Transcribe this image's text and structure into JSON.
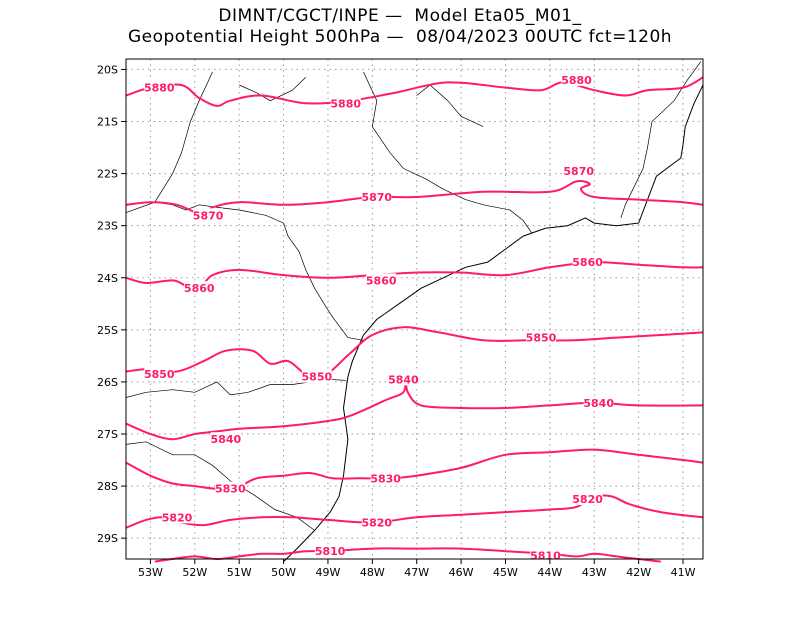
{
  "title_line1": "DIMNT/CGCT/INPE —  Model Eta05_M01_",
  "title_line2": "Geopotential Height 500hPa —  08/04/2023 00UTC fct=120h",
  "colors": {
    "contour": "#ff1a6e",
    "coast": "#000000",
    "grid": "#9a9a9a",
    "frame": "#000000"
  },
  "map": {
    "lon_range": [
      -53.55,
      -40.55
    ],
    "lat_range": [
      -29.4,
      -19.8
    ],
    "x_ticks": [
      {
        "lon": -53,
        "label": "53W"
      },
      {
        "lon": -52,
        "label": "52W"
      },
      {
        "lon": -51,
        "label": "51W"
      },
      {
        "lon": -50,
        "label": "50W"
      },
      {
        "lon": -49,
        "label": "49W"
      },
      {
        "lon": -48,
        "label": "48W"
      },
      {
        "lon": -47,
        "label": "47W"
      },
      {
        "lon": -46,
        "label": "46W"
      },
      {
        "lon": -45,
        "label": "45W"
      },
      {
        "lon": -44,
        "label": "44W"
      },
      {
        "lon": -43,
        "label": "43W"
      },
      {
        "lon": -42,
        "label": "42W"
      },
      {
        "lon": -41,
        "label": "41W"
      }
    ],
    "y_ticks": [
      {
        "lat": -20,
        "label": "20S"
      },
      {
        "lat": -21,
        "label": "21S"
      },
      {
        "lat": -22,
        "label": "22S"
      },
      {
        "lat": -23,
        "label": "23S"
      },
      {
        "lat": -24,
        "label": "24S"
      },
      {
        "lat": -25,
        "label": "25S"
      },
      {
        "lat": -26,
        "label": "26S"
      },
      {
        "lat": -27,
        "label": "27S"
      },
      {
        "lat": -28,
        "label": "28S"
      },
      {
        "lat": -29,
        "label": "29S"
      }
    ],
    "grid": "dotted"
  },
  "contours": [
    {
      "value": "5880",
      "points": [
        [
          -53.55,
          -20.5
        ],
        [
          -53.0,
          -20.35
        ],
        [
          -52.3,
          -20.3
        ],
        [
          -51.9,
          -20.55
        ],
        [
          -51.5,
          -20.7
        ],
        [
          -51.2,
          -20.6
        ],
        [
          -50.5,
          -20.5
        ],
        [
          -49.5,
          -20.65
        ],
        [
          -48.5,
          -20.6
        ],
        [
          -47.5,
          -20.45
        ],
        [
          -46.3,
          -20.25
        ],
        [
          -45.0,
          -20.35
        ],
        [
          -44.2,
          -20.4
        ],
        [
          -43.7,
          -20.25
        ],
        [
          -43.0,
          -20.4
        ],
        [
          -42.3,
          -20.5
        ],
        [
          -41.8,
          -20.4
        ],
        [
          -41.0,
          -20.35
        ],
        [
          -40.55,
          -20.15
        ]
      ],
      "labels": [
        {
          "text": "5880",
          "lon": -52.8,
          "lat": -20.35
        },
        {
          "text": "5880",
          "lon": -48.6,
          "lat": -20.65
        },
        {
          "text": "5880",
          "lon": -43.4,
          "lat": -20.2
        }
      ]
    },
    {
      "value": "5870",
      "points": [
        [
          -53.55,
          -22.6
        ],
        [
          -53.0,
          -22.55
        ],
        [
          -52.4,
          -22.6
        ],
        [
          -51.8,
          -22.8
        ],
        [
          -51.6,
          -22.65
        ],
        [
          -51.0,
          -22.55
        ],
        [
          -50.0,
          -22.6
        ],
        [
          -49.0,
          -22.55
        ],
        [
          -48.0,
          -22.45
        ],
        [
          -47.0,
          -22.45
        ],
        [
          -45.5,
          -22.35
        ],
        [
          -44.0,
          -22.35
        ],
        [
          -43.4,
          -22.15
        ],
        [
          -43.1,
          -22.2
        ],
        [
          -43.3,
          -22.3
        ],
        [
          -43.0,
          -22.45
        ],
        [
          -42.0,
          -22.5
        ],
        [
          -41.0,
          -22.55
        ],
        [
          -40.55,
          -22.6
        ]
      ],
      "labels": [
        {
          "text": "5870",
          "lon": -51.7,
          "lat": -22.8
        },
        {
          "text": "5870",
          "lon": -47.9,
          "lat": -22.45
        },
        {
          "text": "5870",
          "lon": -43.35,
          "lat": -21.95
        }
      ]
    },
    {
      "value": "5860",
      "points": [
        [
          -53.55,
          -24.0
        ],
        [
          -53.1,
          -24.1
        ],
        [
          -52.5,
          -24.05
        ],
        [
          -52.2,
          -24.15
        ],
        [
          -51.9,
          -24.2
        ],
        [
          -51.6,
          -23.95
        ],
        [
          -51.0,
          -23.85
        ],
        [
          -50.0,
          -23.95
        ],
        [
          -49.0,
          -24.0
        ],
        [
          -48.0,
          -23.95
        ],
        [
          -47.0,
          -23.9
        ],
        [
          -46.0,
          -23.9
        ],
        [
          -45.0,
          -23.95
        ],
        [
          -44.0,
          -23.8
        ],
        [
          -43.0,
          -23.7
        ],
        [
          -42.0,
          -23.75
        ],
        [
          -41.0,
          -23.8
        ],
        [
          -40.55,
          -23.8
        ]
      ],
      "labels": [
        {
          "text": "5860",
          "lon": -51.9,
          "lat": -24.2
        },
        {
          "text": "5860",
          "lon": -47.8,
          "lat": -24.05
        },
        {
          "text": "5860",
          "lon": -43.15,
          "lat": -23.7
        }
      ]
    },
    {
      "value": "5850",
      "points": [
        [
          -53.55,
          -25.8
        ],
        [
          -53.0,
          -25.75
        ],
        [
          -52.4,
          -25.8
        ],
        [
          -51.8,
          -25.6
        ],
        [
          -51.3,
          -25.4
        ],
        [
          -50.7,
          -25.4
        ],
        [
          -50.3,
          -25.65
        ],
        [
          -49.9,
          -25.6
        ],
        [
          -49.5,
          -25.85
        ],
        [
          -49.1,
          -25.9
        ],
        [
          -48.5,
          -25.45
        ],
        [
          -48.0,
          -25.1
        ],
        [
          -47.3,
          -24.95
        ],
        [
          -46.5,
          -25.05
        ],
        [
          -45.5,
          -25.2
        ],
        [
          -44.5,
          -25.2
        ],
        [
          -43.5,
          -25.2
        ],
        [
          -42.5,
          -25.15
        ],
        [
          -41.5,
          -25.1
        ],
        [
          -40.55,
          -25.05
        ]
      ],
      "labels": [
        {
          "text": "5850",
          "lon": -52.8,
          "lat": -25.85
        },
        {
          "text": "5850",
          "lon": -49.25,
          "lat": -25.9
        },
        {
          "text": "5850",
          "lon": -44.2,
          "lat": -25.15
        }
      ]
    },
    {
      "value": "5840",
      "points": [
        [
          -53.55,
          -26.8
        ],
        [
          -53.0,
          -27.0
        ],
        [
          -52.5,
          -27.1
        ],
        [
          -52.0,
          -27.0
        ],
        [
          -51.5,
          -26.95
        ],
        [
          -51.0,
          -26.9
        ],
        [
          -50.0,
          -26.85
        ],
        [
          -49.0,
          -26.75
        ],
        [
          -48.5,
          -26.65
        ],
        [
          -47.7,
          -26.35
        ],
        [
          -47.3,
          -26.2
        ],
        [
          -47.25,
          -25.95
        ],
        [
          -47.2,
          -26.2
        ],
        [
          -46.9,
          -26.45
        ],
        [
          -46.0,
          -26.5
        ],
        [
          -45.0,
          -26.5
        ],
        [
          -44.0,
          -26.45
        ],
        [
          -43.0,
          -26.4
        ],
        [
          -42.0,
          -26.45
        ],
        [
          -40.55,
          -26.45
        ]
      ],
      "labels": [
        {
          "text": "5840",
          "lon": -51.3,
          "lat": -27.1
        },
        {
          "text": "5840",
          "lon": -47.3,
          "lat": -25.95
        },
        {
          "text": "5840",
          "lon": -42.9,
          "lat": -26.4
        }
      ]
    },
    {
      "value": "5830",
      "points": [
        [
          -53.55,
          -27.55
        ],
        [
          -53.0,
          -27.8
        ],
        [
          -52.5,
          -27.95
        ],
        [
          -52.0,
          -28.0
        ],
        [
          -51.5,
          -28.05
        ],
        [
          -51.0,
          -28.0
        ],
        [
          -50.6,
          -27.85
        ],
        [
          -50.0,
          -27.8
        ],
        [
          -49.4,
          -27.75
        ],
        [
          -48.9,
          -27.85
        ],
        [
          -48.3,
          -27.85
        ],
        [
          -47.6,
          -27.85
        ],
        [
          -47.0,
          -27.8
        ],
        [
          -46.0,
          -27.65
        ],
        [
          -45.0,
          -27.4
        ],
        [
          -44.0,
          -27.35
        ],
        [
          -43.0,
          -27.3
        ],
        [
          -42.0,
          -27.4
        ],
        [
          -41.0,
          -27.5
        ],
        [
          -40.55,
          -27.55
        ]
      ],
      "labels": [
        {
          "text": "5830",
          "lon": -51.2,
          "lat": -28.05
        },
        {
          "text": "5830",
          "lon": -47.7,
          "lat": -27.85
        }
      ]
    },
    {
      "value": "5820",
      "points": [
        [
          -53.55,
          -28.8
        ],
        [
          -53.1,
          -28.65
        ],
        [
          -52.7,
          -28.6
        ],
        [
          -52.3,
          -28.7
        ],
        [
          -51.8,
          -28.75
        ],
        [
          -51.2,
          -28.65
        ],
        [
          -50.5,
          -28.6
        ],
        [
          -49.8,
          -28.6
        ],
        [
          -49.0,
          -28.65
        ],
        [
          -48.0,
          -28.7
        ],
        [
          -47.0,
          -28.6
        ],
        [
          -46.0,
          -28.55
        ],
        [
          -45.0,
          -28.5
        ],
        [
          -44.0,
          -28.45
        ],
        [
          -43.4,
          -28.4
        ],
        [
          -43.0,
          -28.2
        ],
        [
          -42.6,
          -28.2
        ],
        [
          -42.2,
          -28.35
        ],
        [
          -41.5,
          -28.5
        ],
        [
          -40.55,
          -28.6
        ]
      ],
      "labels": [
        {
          "text": "5820",
          "lon": -52.4,
          "lat": -28.6
        },
        {
          "text": "5820",
          "lon": -47.9,
          "lat": -28.7
        },
        {
          "text": "5820",
          "lon": -43.15,
          "lat": -28.25
        }
      ]
    },
    {
      "value": "5810",
      "points": [
        [
          -52.9,
          -29.45
        ],
        [
          -52.5,
          -29.4
        ],
        [
          -52.0,
          -29.35
        ],
        [
          -51.5,
          -29.4
        ],
        [
          -51.0,
          -29.35
        ],
        [
          -50.5,
          -29.3
        ],
        [
          -50.0,
          -29.3
        ],
        [
          -49.5,
          -29.25
        ],
        [
          -49.0,
          -29.25
        ],
        [
          -48.0,
          -29.2
        ],
        [
          -47.0,
          -29.2
        ],
        [
          -46.0,
          -29.2
        ],
        [
          -45.0,
          -29.25
        ],
        [
          -44.0,
          -29.3
        ],
        [
          -43.4,
          -29.35
        ],
        [
          -43.0,
          -29.3
        ],
        [
          -42.5,
          -29.35
        ],
        [
          -42.0,
          -29.4
        ],
        [
          -41.5,
          -29.45
        ]
      ],
      "labels": [
        {
          "text": "5810",
          "lon": -48.95,
          "lat": -29.25
        },
        {
          "text": "5810",
          "lon": -44.1,
          "lat": -29.33
        }
      ]
    }
  ],
  "coastline": [
    [
      [
        -40.55,
        -20.3
      ],
      [
        -40.75,
        -20.65
      ],
      [
        -40.95,
        -21.1
      ],
      [
        -41.0,
        -21.45
      ],
      [
        -41.05,
        -21.7
      ],
      [
        -41.6,
        -22.05
      ],
      [
        -42.0,
        -22.95
      ],
      [
        -42.5,
        -23.0
      ],
      [
        -43.0,
        -22.95
      ],
      [
        -43.2,
        -22.85
      ],
      [
        -43.6,
        -23.0
      ],
      [
        -44.1,
        -23.05
      ],
      [
        -44.6,
        -23.2
      ],
      [
        -45.0,
        -23.45
      ],
      [
        -45.4,
        -23.7
      ],
      [
        -45.9,
        -23.8
      ],
      [
        -46.4,
        -24.0
      ],
      [
        -46.9,
        -24.2
      ],
      [
        -47.4,
        -24.5
      ],
      [
        -47.9,
        -24.8
      ],
      [
        -48.2,
        -25.1
      ],
      [
        -48.3,
        -25.3
      ],
      [
        -48.45,
        -25.6
      ],
      [
        -48.55,
        -25.9
      ],
      [
        -48.6,
        -26.2
      ],
      [
        -48.65,
        -26.5
      ],
      [
        -48.6,
        -26.8
      ],
      [
        -48.55,
        -27.1
      ],
      [
        -48.6,
        -27.45
      ],
      [
        -48.65,
        -27.8
      ],
      [
        -48.75,
        -28.2
      ],
      [
        -48.95,
        -28.5
      ],
      [
        -49.3,
        -28.85
      ],
      [
        -49.7,
        -29.2
      ],
      [
        -50.0,
        -29.45
      ]
    ]
  ],
  "borders": [
    [
      [
        -51.6,
        -20.05
      ],
      [
        -51.9,
        -20.6
      ],
      [
        -52.1,
        -21.0
      ],
      [
        -52.3,
        -21.6
      ],
      [
        -52.5,
        -22.0
      ],
      [
        -52.9,
        -22.55
      ],
      [
        -53.55,
        -22.75
      ]
    ],
    [
      [
        -52.9,
        -22.55
      ],
      [
        -52.5,
        -22.6
      ],
      [
        -52.2,
        -22.7
      ],
      [
        -51.9,
        -22.6
      ],
      [
        -51.5,
        -22.65
      ],
      [
        -51.0,
        -22.7
      ],
      [
        -50.4,
        -22.8
      ],
      [
        -50.0,
        -22.95
      ],
      [
        -49.9,
        -23.2
      ],
      [
        -49.65,
        -23.5
      ],
      [
        -49.5,
        -23.85
      ],
      [
        -49.3,
        -24.2
      ],
      [
        -49.05,
        -24.55
      ],
      [
        -48.9,
        -24.75
      ],
      [
        -48.55,
        -25.15
      ],
      [
        -48.2,
        -25.2
      ]
    ],
    [
      [
        -53.55,
        -26.3
      ],
      [
        -53.1,
        -26.2
      ],
      [
        -52.5,
        -26.15
      ],
      [
        -52.0,
        -26.2
      ],
      [
        -51.5,
        -26.0
      ],
      [
        -51.2,
        -26.25
      ],
      [
        -50.8,
        -26.2
      ],
      [
        -50.3,
        -26.05
      ],
      [
        -49.8,
        -26.05
      ],
      [
        -49.4,
        -26.0
      ],
      [
        -49.0,
        -25.95
      ],
      [
        -48.6,
        -25.97
      ]
    ],
    [
      [
        -53.55,
        -27.2
      ],
      [
        -53.1,
        -27.15
      ],
      [
        -52.5,
        -27.4
      ],
      [
        -52.0,
        -27.4
      ],
      [
        -51.6,
        -27.6
      ],
      [
        -51.2,
        -27.9
      ],
      [
        -50.7,
        -28.15
      ],
      [
        -50.2,
        -28.45
      ],
      [
        -49.7,
        -28.6
      ],
      [
        -49.3,
        -28.85
      ]
    ],
    [
      [
        -48.2,
        -20.05
      ],
      [
        -47.9,
        -20.6
      ],
      [
        -48.0,
        -21.1
      ],
      [
        -47.6,
        -21.6
      ],
      [
        -47.3,
        -21.9
      ],
      [
        -46.8,
        -22.1
      ],
      [
        -46.4,
        -22.3
      ],
      [
        -45.9,
        -22.5
      ],
      [
        -45.5,
        -22.6
      ],
      [
        -44.9,
        -22.7
      ],
      [
        -44.6,
        -22.9
      ],
      [
        -44.4,
        -23.15
      ]
    ],
    [
      [
        -42.4,
        -22.85
      ],
      [
        -42.3,
        -22.6
      ],
      [
        -41.9,
        -21.9
      ],
      [
        -41.8,
        -21.5
      ],
      [
        -41.7,
        -21.0
      ],
      [
        -41.2,
        -20.6
      ],
      [
        -40.9,
        -20.2
      ],
      [
        -40.6,
        -19.85
      ]
    ],
    [
      [
        -47.0,
        -20.5
      ],
      [
        -46.7,
        -20.3
      ],
      [
        -46.3,
        -20.6
      ],
      [
        -46.0,
        -20.9
      ],
      [
        -45.5,
        -21.1
      ]
    ],
    [
      [
        -49.5,
        -20.15
      ],
      [
        -49.8,
        -20.4
      ],
      [
        -50.3,
        -20.6
      ],
      [
        -50.6,
        -20.45
      ],
      [
        -51.0,
        -20.3
      ]
    ]
  ]
}
